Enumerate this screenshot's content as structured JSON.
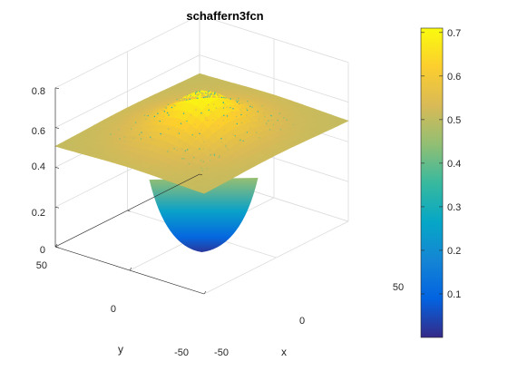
{
  "chart_data": {
    "type": "surface",
    "title": "schaffern3fcn",
    "function": "schaffern3fcn",
    "xlabel": "x",
    "ylabel": "y",
    "zlabel": "",
    "xlim": [
      -50,
      50
    ],
    "ylim": [
      -50,
      50
    ],
    "zlim": [
      0,
      0.8
    ],
    "x_ticks": [
      "-50",
      "0",
      "50"
    ],
    "y_ticks": [
      "-50",
      "0",
      "50"
    ],
    "z_ticks": [
      "0",
      "0.2",
      "0.4",
      "0.6",
      "0.8"
    ],
    "value_range": [
      0.0,
      0.71
    ],
    "corner_values": {
      "x-50_y-50": 0.5,
      "x50_y-50": 0.5,
      "x-50_y50": 0.5,
      "x50_y50": 0.5
    },
    "center_peak": 0.71,
    "center_dip": 0.0,
    "grid": true,
    "colormap": "parula",
    "colorbar": {
      "ticks": [
        "0.1",
        "0.2",
        "0.3",
        "0.4",
        "0.5",
        "0.6",
        "0.7"
      ],
      "range": [
        0.0,
        0.71
      ],
      "placement": "right",
      "colors": [
        "#352a87",
        "#0363e1",
        "#1485d4",
        "#06a7c6",
        "#38b99e",
        "#92bf73",
        "#d9ba56",
        "#fcce2e",
        "#f9fb0e"
      ]
    }
  }
}
